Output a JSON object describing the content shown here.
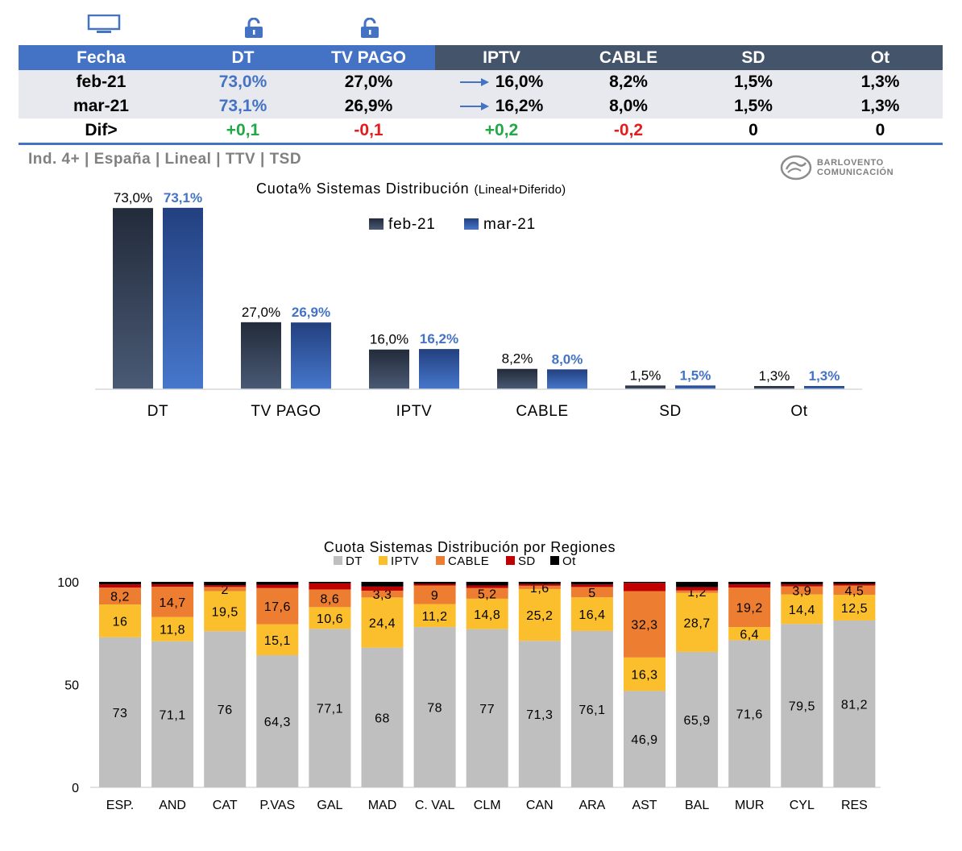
{
  "icons": {
    "tv": "tv-icon",
    "lock1": "lock-icon",
    "lock2": "lock-icon"
  },
  "table": {
    "headers": [
      "Fecha",
      "DT",
      "TV PAGO",
      "IPTV",
      "CABLE",
      "SD",
      "Ot"
    ],
    "rows": [
      {
        "fecha": "feb-21",
        "dt": "73,0%",
        "tvpago": "27,0%",
        "iptv": "16,0%",
        "cable": "8,2%",
        "sd": "1,5%",
        "ot": "1,3%"
      },
      {
        "fecha": "mar-21",
        "dt": "73,1%",
        "tvpago": "26,9%",
        "iptv": "16,2%",
        "cable": "8,0%",
        "sd": "1,5%",
        "ot": "1,3%"
      }
    ],
    "dif": {
      "label": "Dif>",
      "dt": "+0,1",
      "tvpago": "-0,1",
      "iptv": "+0,2",
      "cable": "-0,2",
      "sd": "0",
      "ot": "0"
    }
  },
  "subtitle": "Ind. 4+ | España | Lineal | TTV | TSD",
  "logo": {
    "line1": "BARLOVENTO",
    "line2": "COMUNICACIÓN"
  },
  "colors": {
    "header_blue": "#4472c4",
    "header_dark": "#44546a",
    "positive": "#22a845",
    "negative": "#e31c1c",
    "dt": "#bfbfbf",
    "iptv": "#fbbf2d",
    "cable": "#ed7d31",
    "sd": "#c00000",
    "ot": "#000000"
  },
  "chart_data": [
    {
      "type": "bar",
      "title": "Cuota% Sistemas Distribución",
      "title_note": "(Lineal+Diferido)",
      "categories": [
        "DT",
        "TV PAGO",
        "IPTV",
        "CABLE",
        "SD",
        "Ot"
      ],
      "series": [
        {
          "name": "feb-21",
          "values": [
            73.0,
            27.0,
            16.0,
            8.2,
            1.5,
            1.3
          ],
          "labels": [
            "73,0%",
            "27,0%",
            "16,0%",
            "8,2%",
            "1,5%",
            "1,3%"
          ],
          "color": "#2f3a4f"
        },
        {
          "name": "mar-21",
          "values": [
            73.1,
            26.9,
            16.2,
            8.0,
            1.5,
            1.3
          ],
          "labels": [
            "73,1%",
            "26,9%",
            "16,2%",
            "8,0%",
            "1,5%",
            "1,3%"
          ],
          "color": "#3a63b4"
        }
      ],
      "legend": "top-center",
      "grid": false
    },
    {
      "type": "bar",
      "stacked": true,
      "title": "Cuota Sistemas Distribución por  Regiones",
      "categories": [
        "ESP.",
        "AND",
        "CAT",
        "P.VAS",
        "GAL",
        "MAD",
        "C. VAL",
        "CLM",
        "CAN",
        "ARA",
        "AST",
        "BAL",
        "MUR",
        "CYL",
        "RES"
      ],
      "ylim": [
        0,
        100
      ],
      "yticks": [
        0,
        50,
        100
      ],
      "series": [
        {
          "name": "DT",
          "values": [
            73,
            71.1,
            76,
            64.3,
            77.1,
            68,
            78,
            77,
            71.3,
            76.1,
            46.9,
            65.9,
            71.6,
            79.5,
            81.2
          ],
          "labels": [
            "73",
            "71,1",
            "76",
            "64,3",
            "77,1",
            "68",
            "78",
            "77",
            "71,3",
            "76,1",
            "46,9",
            "65,9",
            "71,6",
            "79,5",
            "81,2"
          ]
        },
        {
          "name": "IPTV",
          "values": [
            16,
            11.8,
            19.5,
            15.1,
            10.6,
            24.4,
            11.2,
            14.8,
            25.2,
            16.4,
            16.3,
            28.7,
            6.4,
            14.4,
            12.5
          ],
          "labels": [
            "16",
            "11,8",
            "19,5",
            "15,1",
            "10,6",
            "24,4",
            "11,2",
            "14,8",
            "25,2",
            "16,4",
            "16,3",
            "28,7",
            "6,4",
            "14,4",
            "12,5"
          ]
        },
        {
          "name": "CABLE",
          "values": [
            8.2,
            14.7,
            2,
            17.6,
            8.6,
            3.3,
            9,
            5.2,
            1.6,
            5,
            32.3,
            1.2,
            19.2,
            3.9,
            4.5
          ],
          "labels": [
            "8,2",
            "14,7",
            "2",
            "17,6",
            "8,6",
            "3,3",
            "9",
            "5,2",
            "1,6",
            "5",
            "32,3",
            "1,2",
            "19,2",
            "3,9",
            "4,5"
          ]
        },
        {
          "name": "SD",
          "values": [
            1.6,
            1.2,
            0.8,
            1.6,
            3.0,
            2.0,
            0.8,
            1.2,
            0.8,
            1.2,
            4.0,
            1.6,
            1.6,
            1.0,
            0.8
          ]
        },
        {
          "name": "Ot",
          "values": [
            1.2,
            1.2,
            1.7,
            1.4,
            0.7,
            2.3,
            1.0,
            1.8,
            1.1,
            1.3,
            0.5,
            2.6,
            1.2,
            1.2,
            1.0
          ]
        }
      ],
      "legend": "top-center",
      "grid": false
    }
  ]
}
